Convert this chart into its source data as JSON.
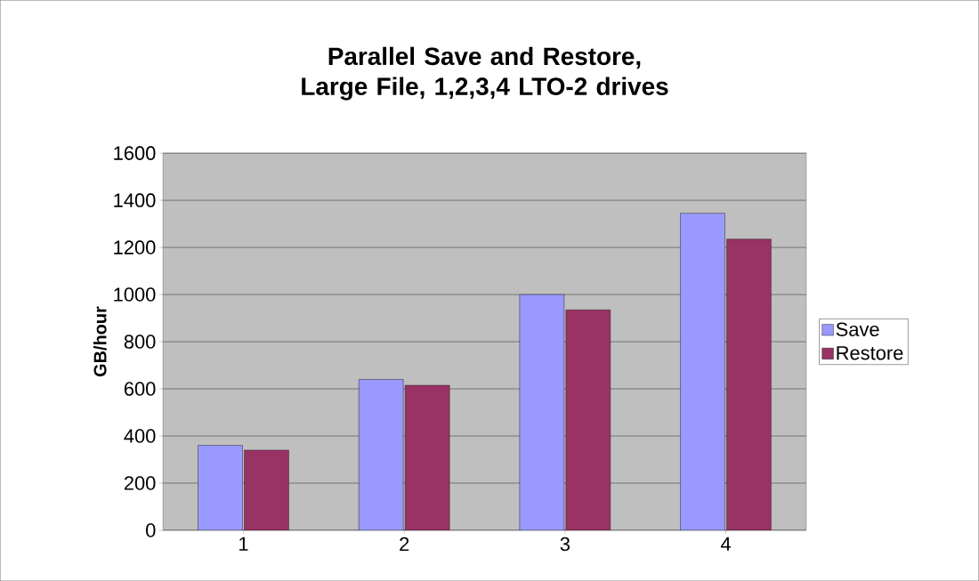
{
  "chart_data": {
    "type": "bar",
    "title": "Parallel Save and Restore,  Large File, 1,2,3,4 LTO-2 drives",
    "ylabel": "GB/hour",
    "categories": [
      "1",
      "2",
      "3",
      "4"
    ],
    "series": [
      {
        "name": "Save",
        "color": "#9999ff",
        "values": [
          360,
          640,
          1000,
          1345
        ]
      },
      {
        "name": "Restore",
        "color": "#993366",
        "values": [
          340,
          615,
          935,
          1235
        ]
      }
    ],
    "ylim": [
      0,
      1600
    ],
    "yticks": [
      0,
      200,
      400,
      600,
      800,
      1000,
      1200,
      1400,
      1600
    ],
    "grid": "y",
    "legend": "right"
  }
}
